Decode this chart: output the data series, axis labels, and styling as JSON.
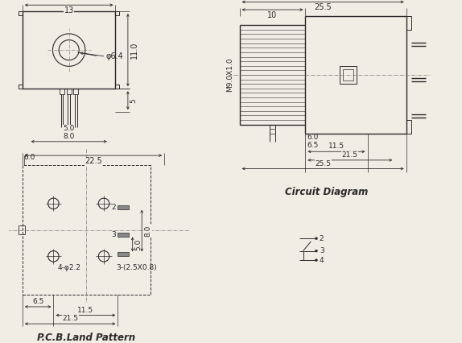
{
  "bg_color": "#f0ede5",
  "lc": "#2a2a2a",
  "lc_dim": "#2a2a2a",
  "lc_dash": "#555555",
  "fs": 6.5,
  "fs_lbl": 7.0,
  "fs_title": 8.5,
  "annotations": {
    "dim_13": "13",
    "dim_11": "11.0",
    "phi64": "φ6.4",
    "dim_5": "5",
    "dim_50": "5.0",
    "dim_80": "8.0",
    "dim_225": "22.5",
    "dim_60": "6.0",
    "dim_4phi22": "4-φ2.2",
    "dim_3pads": "3-(2.5X0.8)",
    "dim_65": "6.5",
    "dim_115": "11.5",
    "dim_215": "21.5",
    "dim_10": "10",
    "dim_255": "25.5",
    "M9": "M9.0X1.0",
    "dim_60r": "6.0",
    "dim_65r": "6.5",
    "dim_115r": "11.5",
    "dim_215r": "21.5",
    "dim_255r": "25.5",
    "n2": "2",
    "n3": "3",
    "n4": "4",
    "title_pcb": "P.C.B.Land Pattern",
    "title_ckt": "Circuit Diagram"
  }
}
